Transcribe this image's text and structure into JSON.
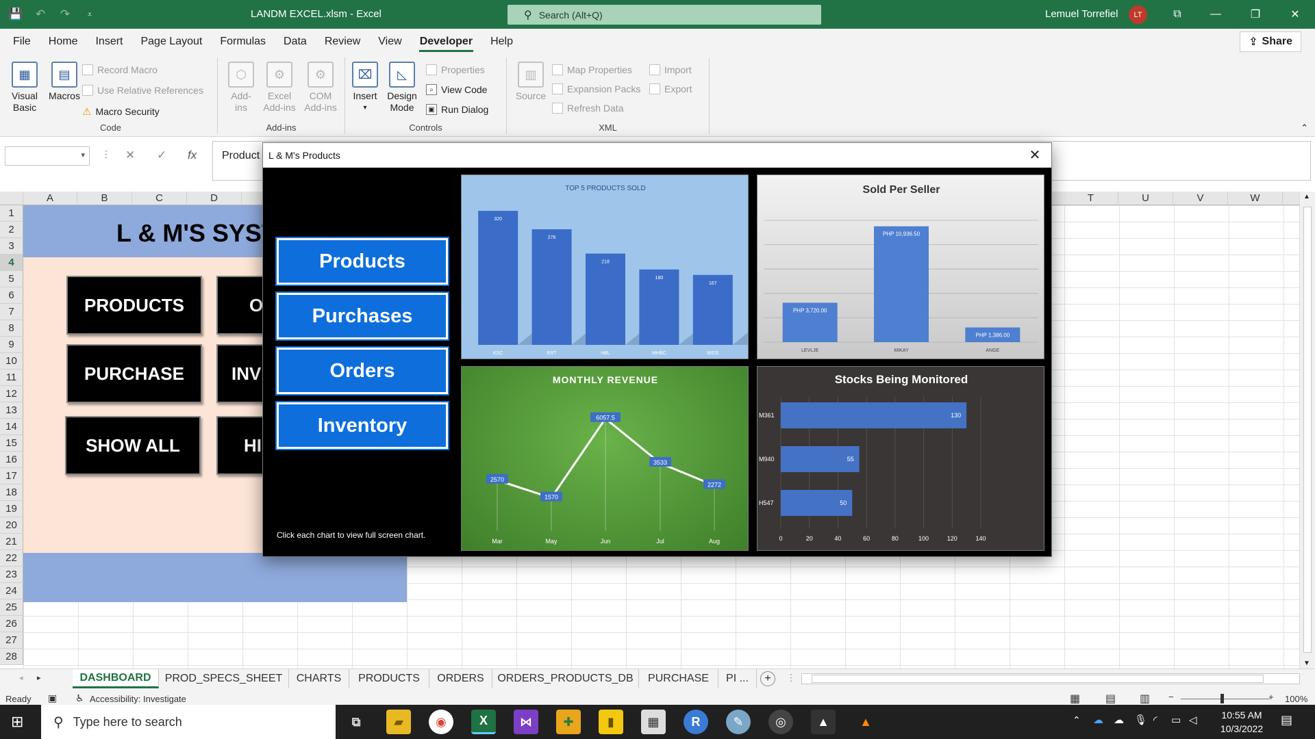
{
  "titlebar": {
    "doc_title": "LANDM EXCEL.xlsm  -  Excel",
    "search_placeholder": "Search (Alt+Q)",
    "user_name": "Lemuel Torrefiel",
    "user_initials": "LT"
  },
  "menu": {
    "items": [
      "File",
      "Home",
      "Insert",
      "Page Layout",
      "Formulas",
      "Data",
      "Review",
      "View",
      "Developer",
      "Help"
    ],
    "active": "Developer",
    "share_label": "Share"
  },
  "ribbon": {
    "code": {
      "label": "Code",
      "visual_basic": "Visual Basic",
      "macros": "Macros",
      "record_macro": "Record Macro",
      "use_relative": "Use Relative References",
      "macro_security": "Macro Security"
    },
    "addins": {
      "label": "Add-ins",
      "addins": "Add-ins",
      "excel_addins": "Excel Add-ins",
      "com_addins": "COM Add-ins"
    },
    "controls": {
      "label": "Controls",
      "insert": "Insert",
      "design_mode": "Design Mode",
      "properties": "Properties",
      "view_code": "View Code",
      "run_dialog": "Run Dialog"
    },
    "xml": {
      "label": "XML",
      "source": "Source",
      "map_properties": "Map Properties",
      "expansion_packs": "Expansion Packs",
      "refresh_data": "Refresh Data",
      "import": "Import",
      "export": "Export"
    }
  },
  "formula_bar": {
    "name_box": "",
    "content": "Product"
  },
  "grid": {
    "left_columns": [
      "A",
      "B",
      "C",
      "D"
    ],
    "right_columns": [
      "T",
      "U",
      "V",
      "W"
    ],
    "rows": [
      "1",
      "2",
      "3",
      "4",
      "5",
      "6",
      "7",
      "8",
      "9",
      "10",
      "11",
      "12",
      "13",
      "14",
      "15",
      "16",
      "17",
      "18",
      "19",
      "20",
      "21",
      "22",
      "23",
      "24",
      "25",
      "26",
      "27",
      "28"
    ],
    "selected_row": "4"
  },
  "dashboard": {
    "title": "L & M'S SYST",
    "buttons": {
      "products": "PRODUCTS",
      "purchase": "PURCHASE",
      "show_all": "SHOW ALL",
      "btn2": "O",
      "btn4": "INV",
      "btn6": "HI"
    }
  },
  "sheet_tabs": [
    "DASHBOARD",
    "PROD_SPECS_SHEET",
    "CHARTS",
    "PRODUCTS",
    "ORDERS",
    "ORDERS_PRODUCTS_DB",
    "PURCHASE",
    "PI ..."
  ],
  "status": {
    "ready": "Ready",
    "accessibility": "Accessibility: Investigate",
    "zoom": "100%"
  },
  "taskbar": {
    "search_placeholder": "Type here to search",
    "time": "10:55 AM",
    "date": "10/3/2022"
  },
  "dialog": {
    "title": "L & M's Products",
    "nav": {
      "products": "Products",
      "purchases": "Purchases",
      "orders": "Orders",
      "inventory": "Inventory"
    },
    "hint": "Click each chart to view full screen chart."
  },
  "chart_data": [
    {
      "type": "bar",
      "title": "TOP 5 PRODUCTS SOLD",
      "categories": [
        "KSC",
        "ERT",
        "HBL",
        "MHBC",
        "MIDS"
      ],
      "values": [
        320,
        276,
        218,
        180,
        167
      ],
      "data_labels": [
        "320",
        "276",
        "218",
        "180",
        "167"
      ]
    },
    {
      "type": "bar",
      "title": "Sold Per Seller",
      "categories": [
        "LEVLJE",
        "MIKAY",
        "ANGE"
      ],
      "values": [
        3720,
        10936.5,
        1386
      ],
      "data_labels": [
        "PHP 3,720.00",
        "PHP 10,936.50",
        "PHP 1,386.00"
      ]
    },
    {
      "type": "line",
      "title": "MONTHLY  REVENUE",
      "categories": [
        "Mar",
        "May",
        "Jun",
        "Jul",
        "Aug"
      ],
      "values": [
        2570,
        1570,
        6057.5,
        3533,
        2272
      ],
      "data_labels": [
        "2570",
        "1570",
        "6057.5",
        "3533",
        "2272"
      ]
    },
    {
      "type": "bar",
      "orientation": "horizontal",
      "title": "Stocks Being Monitored",
      "categories": [
        "M361",
        "M940",
        "H547"
      ],
      "values": [
        130,
        55,
        50
      ],
      "xlim": [
        0,
        140
      ],
      "xticks": [
        "0",
        "20",
        "40",
        "60",
        "80",
        "100",
        "120",
        "140"
      ]
    }
  ]
}
